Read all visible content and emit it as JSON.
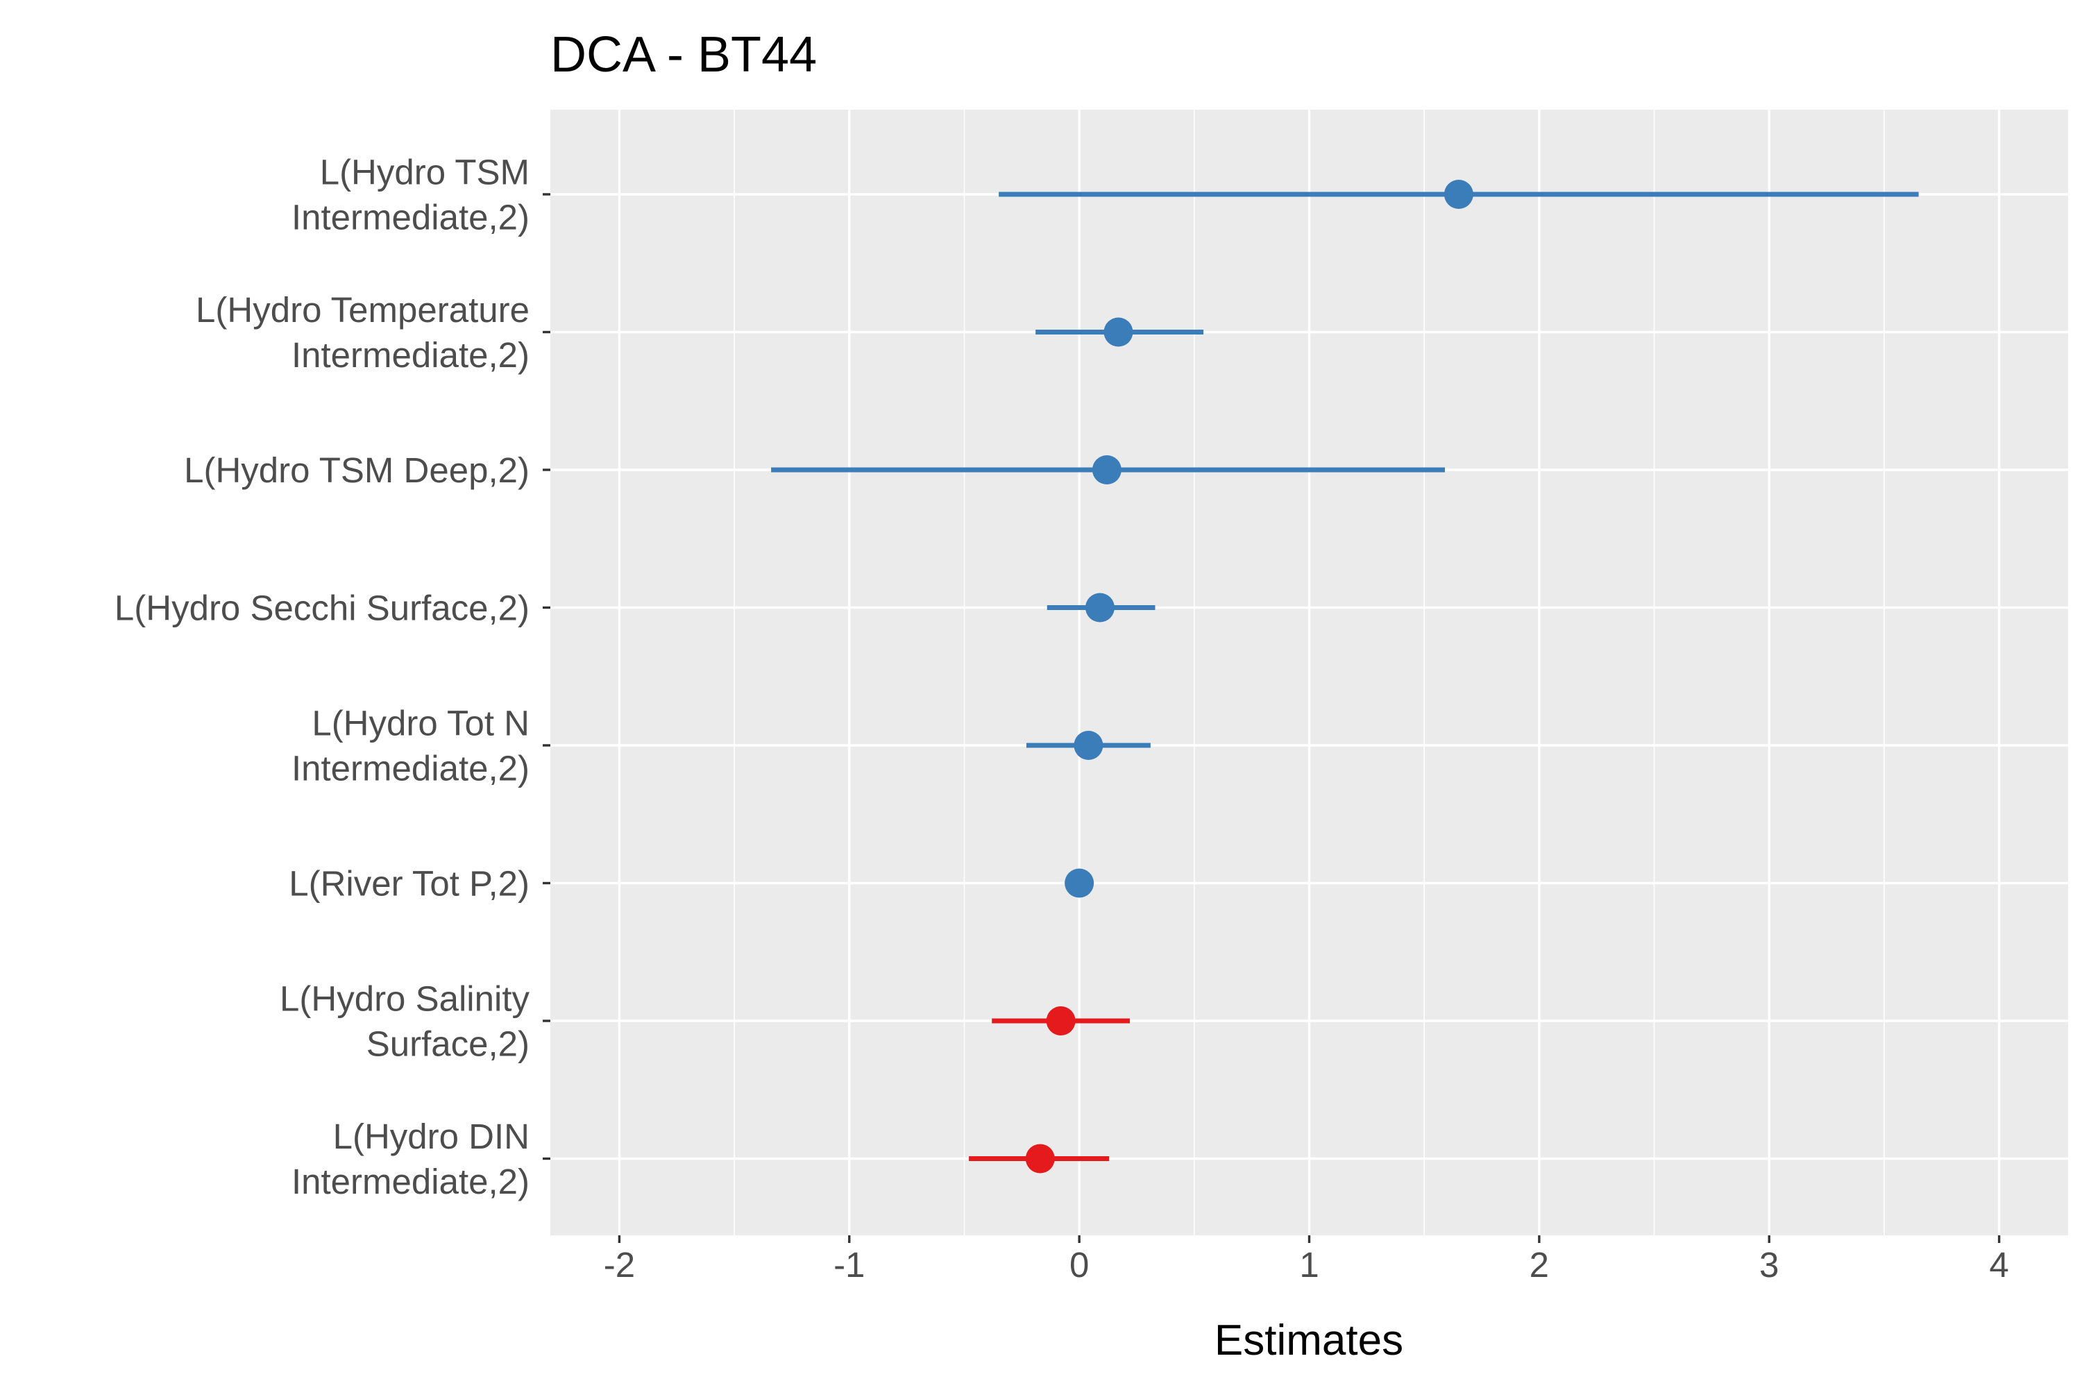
{
  "chart_data": {
    "type": "scatter",
    "subtype": "coefficient-plot",
    "title": "DCA - BT44",
    "xlabel": "Estimates",
    "ylabel": "",
    "xlim": [
      -2.3,
      4.3
    ],
    "x_ticks": [
      -2,
      -1,
      0,
      1,
      2,
      3,
      4
    ],
    "x_tick_labels": [
      "-2",
      "-1",
      "0",
      "1",
      "2",
      "3",
      "4"
    ],
    "grid": true,
    "legend": "none",
    "colors": {
      "positive": "#3b7db9",
      "negative": "#e41a1c",
      "panel": "#ebebeb",
      "grid": "#ffffff"
    },
    "series": [
      {
        "label_lines": [
          "L(Hydro TSM",
          "Intermediate,2)"
        ],
        "estimate": 1.65,
        "lower": -0.35,
        "upper": 3.65,
        "sign": "positive"
      },
      {
        "label_lines": [
          "L(Hydro Temperature",
          "Intermediate,2)"
        ],
        "estimate": 0.17,
        "lower": -0.19,
        "upper": 0.54,
        "sign": "positive"
      },
      {
        "label_lines": [
          "L(Hydro TSM Deep,2)"
        ],
        "estimate": 0.12,
        "lower": -1.34,
        "upper": 1.59,
        "sign": "positive"
      },
      {
        "label_lines": [
          "L(Hydro Secchi Surface,2)"
        ],
        "estimate": 0.09,
        "lower": -0.14,
        "upper": 0.33,
        "sign": "positive"
      },
      {
        "label_lines": [
          "L(Hydro Tot N",
          "Intermediate,2)"
        ],
        "estimate": 0.04,
        "lower": -0.23,
        "upper": 0.31,
        "sign": "positive"
      },
      {
        "label_lines": [
          "L(River Tot P,2)"
        ],
        "estimate": 0.0,
        "lower": 0.0,
        "upper": 0.0,
        "sign": "positive"
      },
      {
        "label_lines": [
          "L(Hydro Salinity",
          "Surface,2)"
        ],
        "estimate": -0.08,
        "lower": -0.38,
        "upper": 0.22,
        "sign": "negative"
      },
      {
        "label_lines": [
          "L(Hydro DIN",
          "Intermediate,2)"
        ],
        "estimate": -0.17,
        "lower": -0.48,
        "upper": 0.13,
        "sign": "negative"
      }
    ]
  }
}
